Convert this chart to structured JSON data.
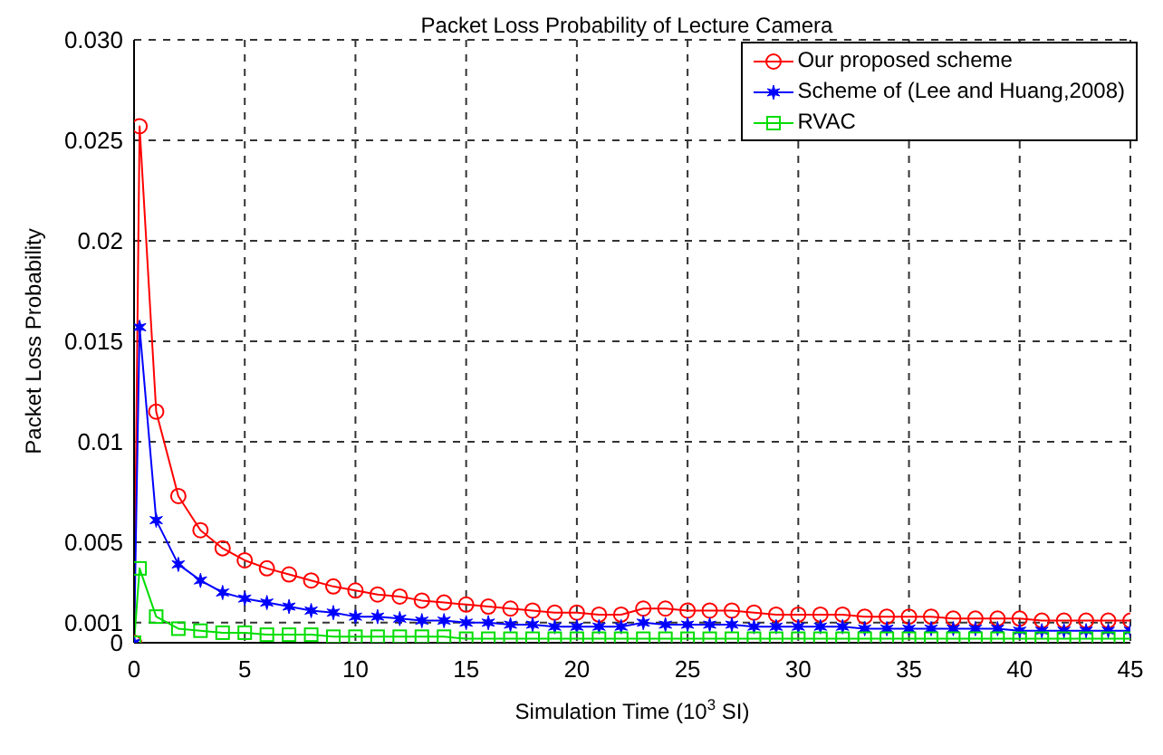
{
  "chart_data": {
    "type": "line",
    "title": "Packet Loss Probability of Lecture Camera",
    "xlabel": "Simulation Time (10$^{3}$ SI)",
    "ylabel": "Packet Loss Probability",
    "x": [
      0,
      0.25,
      1,
      2,
      3,
      4,
      5,
      6,
      7,
      8,
      9,
      10,
      11,
      12,
      13,
      14,
      15,
      16,
      17,
      18,
      19,
      20,
      21,
      22,
      23,
      24,
      25,
      26,
      27,
      28,
      29,
      30,
      31,
      32,
      33,
      34,
      35,
      36,
      37,
      38,
      39,
      40,
      41,
      42,
      43,
      44,
      45
    ],
    "series": [
      {
        "name": "Our proposed scheme",
        "color": "#ff0000",
        "marker": "circle",
        "values": [
          0,
          0.0257,
          0.0115,
          0.0073,
          0.0056,
          0.0047,
          0.0041,
          0.0037,
          0.0034,
          0.0031,
          0.0028,
          0.0026,
          0.0024,
          0.0023,
          0.0021,
          0.002,
          0.0019,
          0.0018,
          0.0017,
          0.0016,
          0.0015,
          0.0015,
          0.0014,
          0.0014,
          0.0017,
          0.0017,
          0.0016,
          0.0016,
          0.0016,
          0.0015,
          0.0014,
          0.0014,
          0.0014,
          0.0014,
          0.0013,
          0.0013,
          0.0013,
          0.0013,
          0.0012,
          0.0012,
          0.0012,
          0.0012,
          0.0011,
          0.0011,
          0.0011,
          0.0011,
          0.0011
        ]
      },
      {
        "name": "Scheme of (Lee and Huang,2008)",
        "color": "#0000ff",
        "marker": "cross",
        "values": [
          0,
          0.0157,
          0.0061,
          0.0039,
          0.0031,
          0.0025,
          0.0022,
          0.002,
          0.0018,
          0.0016,
          0.0015,
          0.0013,
          0.0013,
          0.0012,
          0.0011,
          0.0011,
          0.001,
          0.001,
          0.0009,
          0.0009,
          0.0008,
          0.0008,
          0.0008,
          0.0008,
          0.001,
          0.0009,
          0.0009,
          0.0009,
          0.0009,
          0.0008,
          0.0008,
          0.0008,
          0.0008,
          0.0008,
          0.0007,
          0.0007,
          0.0007,
          0.0007,
          0.0007,
          0.0007,
          0.0007,
          0.0006,
          0.0006,
          0.0006,
          0.0006,
          0.0006,
          0.0006
        ]
      },
      {
        "name": "RVAC",
        "color": "#00dd00",
        "marker": "square",
        "values": [
          0,
          0.0037,
          0.0013,
          0.0007,
          0.0006,
          0.0005,
          0.0005,
          0.0004,
          0.0004,
          0.0004,
          0.0003,
          0.0003,
          0.0003,
          0.0003,
          0.0003,
          0.0003,
          0.0002,
          0.0002,
          0.0002,
          0.0002,
          0.0002,
          0.0002,
          0.0002,
          0.0002,
          0.0002,
          0.0002,
          0.0002,
          0.0002,
          0.0002,
          0.0002,
          0.0002,
          0.0002,
          0.0002,
          0.0002,
          0.0002,
          0.0002,
          0.0002,
          0.0002,
          0.0002,
          0.0002,
          0.0002,
          0.0002,
          0.0002,
          0.0002,
          0.0002,
          0.0002,
          0.0002
        ]
      }
    ],
    "xlim": [
      0,
      45
    ],
    "xticks": [
      0,
      5,
      10,
      15,
      20,
      25,
      30,
      35,
      40,
      45
    ],
    "ylim": [
      0,
      0.03
    ],
    "yticks": [
      0,
      0.001,
      0.005,
      0.01,
      0.015,
      0.02,
      0.025,
      {
        "value": 0.03,
        "label": "0.030"
      }
    ],
    "grid": true,
    "legend": "top right",
    "line_style": "solid"
  }
}
